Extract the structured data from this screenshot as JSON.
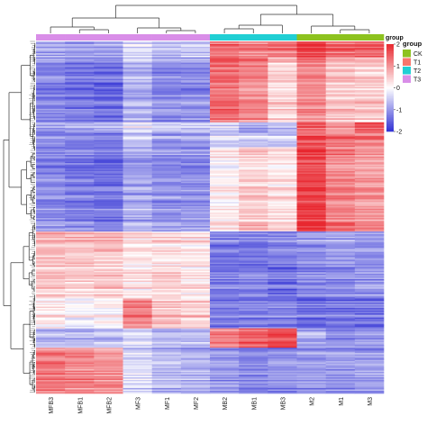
{
  "chart_data": {
    "type": "heatmap",
    "columns": [
      "MFB3",
      "MFB1",
      "MFB2",
      "MF3",
      "MF1",
      "MF2",
      "MB2",
      "MB1",
      "MB3",
      "M2",
      "M1",
      "M3"
    ],
    "column_groups": [
      "T3",
      "T3",
      "T3",
      "T3",
      "T3",
      "T3",
      "T2",
      "T2",
      "T2",
      "CK",
      "CK",
      "CK"
    ],
    "row_blocks": [
      {
        "fraction": 0.045,
        "values": [
          -0.8,
          -0.9,
          -0.8,
          -0.3,
          -0.6,
          -0.5,
          1.3,
          1.2,
          1.3,
          1.8,
          1.4,
          1.5
        ]
      },
      {
        "fraction": 0.185,
        "values": [
          -1.2,
          -1.3,
          -1.4,
          -0.7,
          -1.1,
          -1.1,
          1.4,
          1.1,
          0.4,
          1.1,
          0.6,
          0.5
        ]
      },
      {
        "fraction": 0.03,
        "values": [
          -0.9,
          -0.8,
          -0.7,
          -0.1,
          -0.4,
          -0.4,
          -0.4,
          -0.7,
          -0.6,
          1.5,
          1.0,
          1.7
        ]
      },
      {
        "fraction": 0.04,
        "values": [
          -1.1,
          -1.2,
          -1.2,
          -0.5,
          -0.9,
          -0.9,
          -0.3,
          -0.4,
          -0.4,
          1.7,
          1.4,
          1.3
        ]
      },
      {
        "fraction": 0.24,
        "values": [
          -1.1,
          -1.2,
          -1.3,
          -0.8,
          -1.0,
          -1.0,
          0.2,
          0.5,
          0.3,
          1.8,
          1.2,
          1.0
        ]
      },
      {
        "fraction": 0.1,
        "values": [
          0.7,
          0.6,
          0.6,
          0.3,
          0.3,
          0.3,
          -1.2,
          -1.3,
          -1.2,
          -1.0,
          -0.9,
          -1.0
        ]
      },
      {
        "fraction": 0.09,
        "values": [
          0.5,
          0.4,
          0.5,
          0.2,
          0.4,
          0.2,
          -1.3,
          -1.2,
          -1.4,
          -1.2,
          -1.1,
          -1.0
        ]
      },
      {
        "fraction": 0.085,
        "values": [
          0.2,
          0.0,
          0.1,
          1.2,
          0.6,
          0.5,
          -1.2,
          -1.1,
          -1.2,
          -1.3,
          -1.3,
          -1.3
        ]
      },
      {
        "fraction": 0.055,
        "values": [
          -0.6,
          -0.7,
          -0.6,
          -0.3,
          -0.7,
          -0.6,
          1.2,
          1.5,
          1.7,
          -0.8,
          -1.0,
          -0.9
        ]
      },
      {
        "fraction": 0.13,
        "values": [
          1.2,
          1.1,
          1.0,
          -0.4,
          -0.7,
          -0.8,
          -1.0,
          -1.2,
          -1.1,
          -1.0,
          -1.0,
          -1.0
        ]
      }
    ],
    "legend": {
      "title": "group",
      "items": [
        {
          "label": "CK",
          "color": "#8dc21f"
        },
        {
          "label": "T1",
          "color": "#f8766d"
        },
        {
          "label": "T2",
          "color": "#20cfd4"
        },
        {
          "label": "T3",
          "color": "#d98ee8"
        }
      ]
    },
    "color_scale": {
      "ticks": [
        2,
        1,
        0,
        -1,
        -2
      ],
      "low": "#3131d4",
      "mid": "#ffffff",
      "high": "#e8262e"
    },
    "vlim": [
      -2,
      2
    ]
  }
}
